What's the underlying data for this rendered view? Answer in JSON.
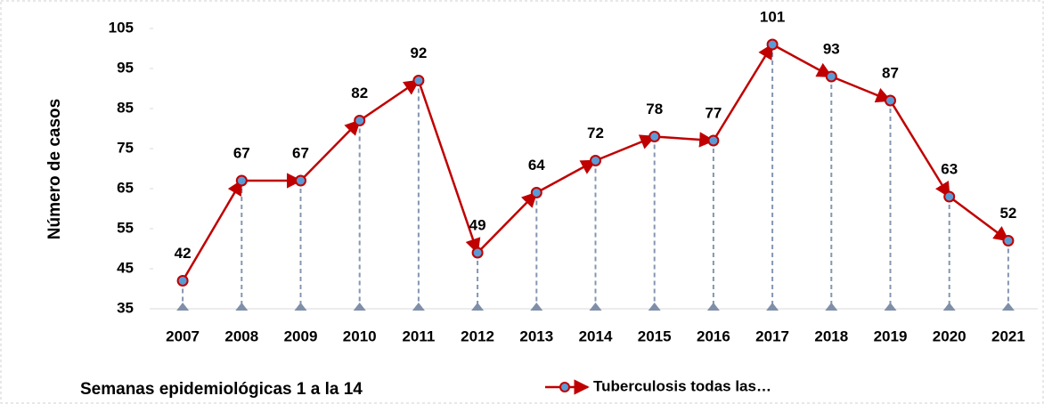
{
  "chart_data": {
    "type": "line",
    "y_label": "Número de casos",
    "x_label": "Semanas epidemiológicas 1 a la 14",
    "categories": [
      "2007",
      "2008",
      "2009",
      "2010",
      "2011",
      "2012",
      "2013",
      "2014",
      "2015",
      "2016",
      "2017",
      "2018",
      "2019",
      "2020",
      "2021"
    ],
    "series": [
      {
        "name": "Tuberculosis todas las…",
        "color": "#c00000",
        "marker_color": "#5b9bd5",
        "values": [
          42,
          67,
          67,
          82,
          92,
          49,
          64,
          72,
          78,
          77,
          101,
          93,
          87,
          63,
          52
        ]
      }
    ],
    "drop_lines": true,
    "ylim": [
      35,
      105
    ],
    "yticks": [
      35,
      45,
      55,
      65,
      75,
      85,
      95,
      105
    ]
  }
}
